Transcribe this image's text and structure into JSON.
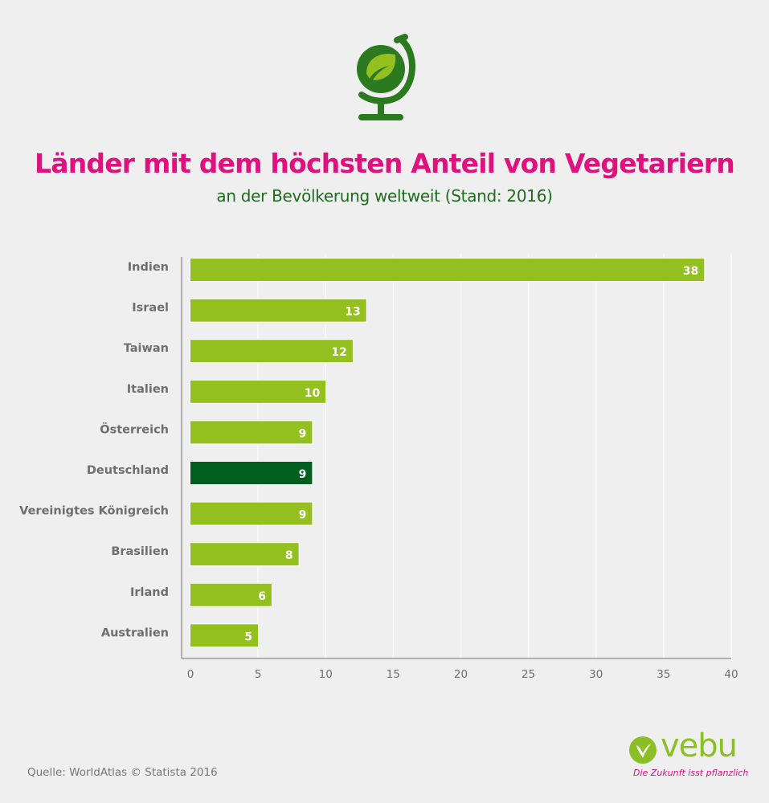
{
  "header": {
    "icon": "globe-leaf-icon",
    "title": "Länder mit dem höchsten Anteil von Vegetariern",
    "subtitle": "an der Bevölkerung weltweit (Stand: 2016)"
  },
  "chart_data": {
    "type": "bar",
    "orientation": "horizontal",
    "title": "Länder mit dem höchsten Anteil von Vegetariern",
    "subtitle": "an der Bevölkerung weltweit (Stand: 2016)",
    "xlabel": "",
    "ylabel": "",
    "categories": [
      "Indien",
      "Israel",
      "Taiwan",
      "Italien",
      "Österreich",
      "Deutschland",
      "Vereinigtes Königreich",
      "Brasilien",
      "Irland",
      "Australien"
    ],
    "values": [
      38,
      13,
      12,
      10,
      9,
      9,
      9,
      8,
      6,
      5
    ],
    "highlight": "Deutschland",
    "xlim": [
      0,
      40
    ],
    "xticks": [
      0,
      5,
      10,
      15,
      20,
      25,
      30,
      35,
      40
    ],
    "grid": true,
    "colors": {
      "bar": "#93c01f",
      "highlight": "#025e1e",
      "title": "#e0117f",
      "subtitle": "#1f6b1f"
    }
  },
  "footer": {
    "source": "Quelle: WorldAtlas © Statista 2016",
    "logo_name": "vebu",
    "logo_tagline": "Die Zukunft isst pflanzlich"
  }
}
